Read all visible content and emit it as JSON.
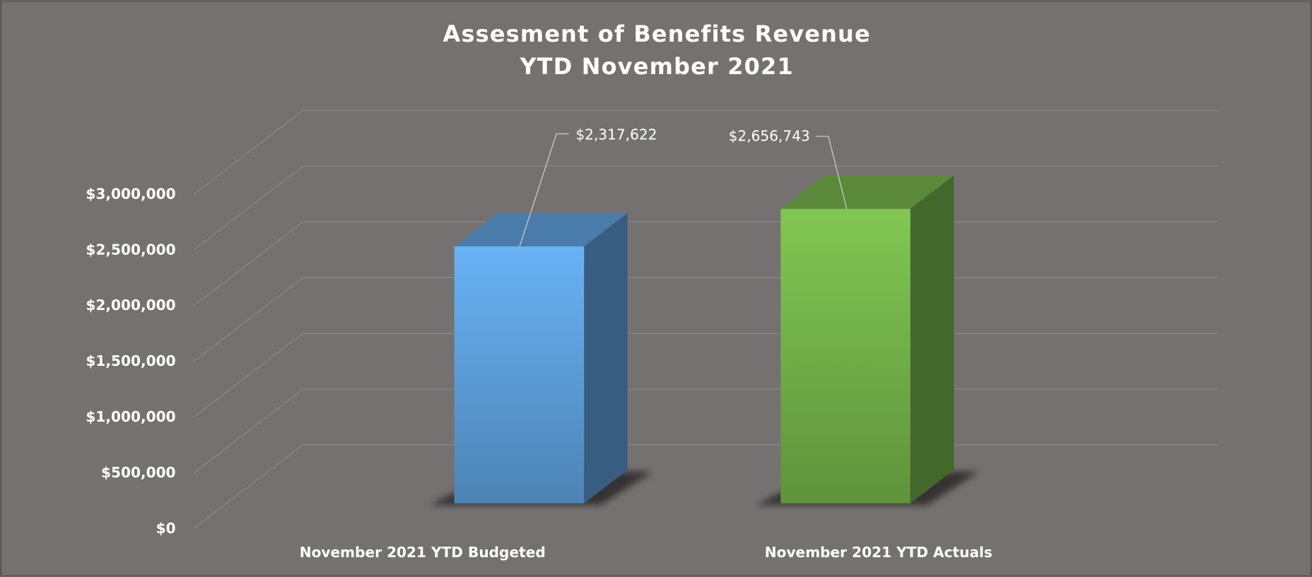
{
  "chart_data": {
    "type": "bar3d",
    "title": [
      "Assesment of Benefits Revenue",
      "YTD November 2021"
    ],
    "categories": [
      "November 2021 YTD Budgeted",
      "November 2021 YTD Actuals"
    ],
    "values": [
      2317622,
      2656743
    ],
    "value_labels": [
      "$2,317,622",
      "$2,656,743"
    ],
    "colors": [
      "#5b9bd5",
      "#70ad47"
    ],
    "ylim": [
      0,
      3000000
    ],
    "yticks": [
      {
        "value": 0,
        "label": "$0"
      },
      {
        "value": 500000,
        "label": "$500,000"
      },
      {
        "value": 1000000,
        "label": "$1,000,000"
      },
      {
        "value": 1500000,
        "label": "$1,500,000"
      },
      {
        "value": 2000000,
        "label": "$2,000,000"
      },
      {
        "value": 2500000,
        "label": "$2,500,000"
      },
      {
        "value": 3000000,
        "label": "$3,000,000"
      }
    ],
    "grid": true
  }
}
